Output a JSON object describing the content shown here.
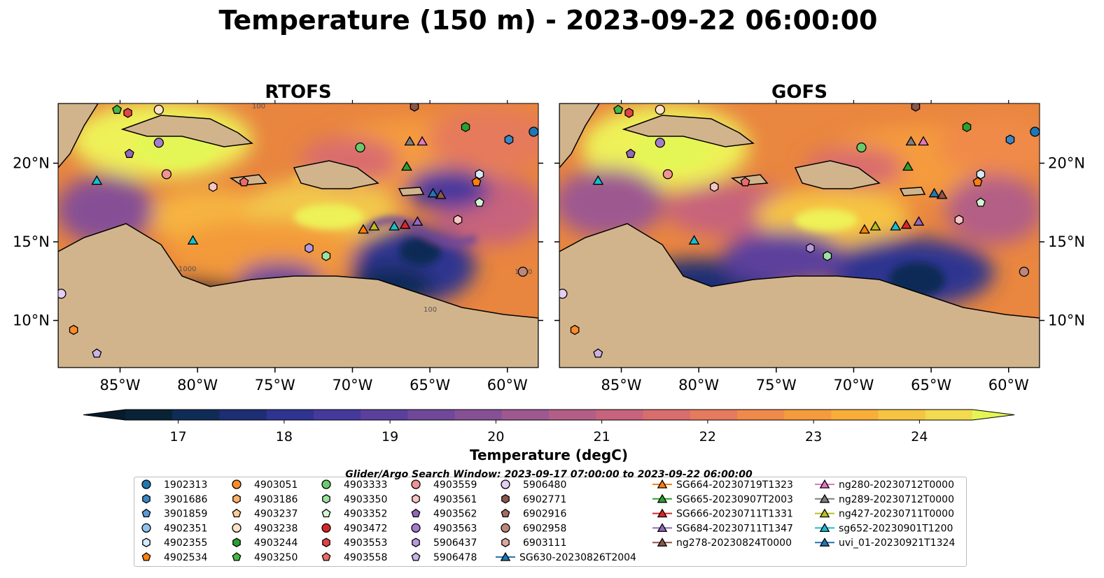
{
  "title": "Temperature (150 m) - 2023-09-22 06:00:00",
  "panels": [
    {
      "id": "rtofs",
      "title": "RTOFS"
    },
    {
      "id": "gofs",
      "title": "GOFS"
    }
  ],
  "map_extent": {
    "lon_min": -89,
    "lon_max": -58,
    "lat_min": 7,
    "lat_max": 23.8
  },
  "lon_ticks": [
    {
      "v": -85,
      "label": "85°W"
    },
    {
      "v": -80,
      "label": "80°W"
    },
    {
      "v": -75,
      "label": "75°W"
    },
    {
      "v": -70,
      "label": "70°W"
    },
    {
      "v": -65,
      "label": "65°W"
    },
    {
      "v": -60,
      "label": "60°W"
    }
  ],
  "lat_ticks": [
    {
      "v": 20,
      "label": "20°N"
    },
    {
      "v": 15,
      "label": "15°N"
    },
    {
      "v": 10,
      "label": "10°N"
    }
  ],
  "contour_labels": [
    "1000",
    "1000",
    "100",
    "100"
  ],
  "colorbar": {
    "label": "Temperature (degC)",
    "min": 16.5,
    "max": 24.5,
    "step": 0.5,
    "ticks": [
      {
        "v": 17,
        "label": "17"
      },
      {
        "v": 18,
        "label": "18"
      },
      {
        "v": 19,
        "label": "19"
      },
      {
        "v": 20,
        "label": "20"
      },
      {
        "v": 21,
        "label": "21"
      },
      {
        "v": 22,
        "label": "22"
      },
      {
        "v": 23,
        "label": "23"
      },
      {
        "v": 24,
        "label": "24"
      }
    ],
    "colors": [
      "#0a2236",
      "#0f2c57",
      "#1d2e75",
      "#2e348f",
      "#46399c",
      "#5b3f9c",
      "#704899",
      "#865095",
      "#9d5890",
      "#b35e86",
      "#c7637c",
      "#d96d6d",
      "#e67a5c",
      "#f08a4a",
      "#f59b3c",
      "#f8ae38",
      "#f6c443",
      "#f2db4f"
    ],
    "over_color": "#e4f655",
    "under_color": "#081b2a"
  },
  "search_window": "Glider/Argo Search Window: 2023-09-17 07:00:00 to 2023-09-22 06:00:00",
  "colors": {
    "land": "#d2b48c",
    "shelf": "#9ab9e0",
    "coast": "#000000"
  },
  "legend_columns": [
    [
      {
        "label": "1902313",
        "marker": "circle",
        "color": "#1f77b4"
      },
      {
        "label": "3901686",
        "marker": "hexagon",
        "color": "#3a87c8"
      },
      {
        "label": "3901859",
        "marker": "pentagon",
        "color": "#5a9ad6"
      },
      {
        "label": "4902351",
        "marker": "circle",
        "color": "#8fc2ee"
      },
      {
        "label": "4902355",
        "marker": "hexagon",
        "color": "#d6eafa"
      },
      {
        "label": "4902534",
        "marker": "pentagon",
        "color": "#ff7f0e"
      }
    ],
    [
      {
        "label": "4903051",
        "marker": "circle",
        "color": "#ff8c2a"
      },
      {
        "label": "4903186",
        "marker": "hexagon",
        "color": "#ffb266"
      },
      {
        "label": "4903237",
        "marker": "pentagon",
        "color": "#ffcc99"
      },
      {
        "label": "4903238",
        "marker": "circle",
        "color": "#ffe3c7"
      },
      {
        "label": "4903244",
        "marker": "hexagon",
        "color": "#2ca02c"
      },
      {
        "label": "4903250",
        "marker": "pentagon",
        "color": "#45b845"
      }
    ],
    [
      {
        "label": "4903333",
        "marker": "circle",
        "color": "#6cc96c"
      },
      {
        "label": "4903350",
        "marker": "hexagon",
        "color": "#9ee09e"
      },
      {
        "label": "4903352",
        "marker": "pentagon",
        "color": "#d3f5d3"
      },
      {
        "label": "4903472",
        "marker": "circle",
        "color": "#d62728"
      },
      {
        "label": "4903553",
        "marker": "hexagon",
        "color": "#e04545"
      },
      {
        "label": "4903558",
        "marker": "pentagon",
        "color": "#ec6a6a"
      }
    ],
    [
      {
        "label": "4903559",
        "marker": "circle",
        "color": "#f29393"
      },
      {
        "label": "4903561",
        "marker": "hexagon",
        "color": "#fac4c4"
      },
      {
        "label": "4903562",
        "marker": "pentagon",
        "color": "#9467bd"
      },
      {
        "label": "4903563",
        "marker": "circle",
        "color": "#a47ccc"
      },
      {
        "label": "5906437",
        "marker": "hexagon",
        "color": "#b799dc"
      },
      {
        "label": "5906478",
        "marker": "pentagon",
        "color": "#cbb3e8"
      }
    ],
    [
      {
        "label": "5906480",
        "marker": "circle",
        "color": "#e2cff3"
      },
      {
        "label": "6902771",
        "marker": "hexagon",
        "color": "#8c564b"
      },
      {
        "label": "6902916",
        "marker": "pentagon",
        "color": "#a46d62"
      },
      {
        "label": "6902958",
        "marker": "circle",
        "color": "#bb877c"
      },
      {
        "label": "6903111",
        "marker": "hexagon",
        "color": "#d9a99c"
      },
      {
        "label": "SG630-20230826T2004",
        "marker": "triangle-line",
        "color": "#1f77b4"
      }
    ],
    [
      {
        "label": "SG664-20230719T1323",
        "marker": "triangle-line",
        "color": "#ff7f0e"
      },
      {
        "label": "SG665-20230907T2003",
        "marker": "triangle-line",
        "color": "#2ca02c"
      },
      {
        "label": "SG666-20230711T1331",
        "marker": "triangle-line",
        "color": "#d62728"
      },
      {
        "label": "SG684-20230711T1347",
        "marker": "triangle-line",
        "color": "#9467bd"
      },
      {
        "label": "ng278-20230824T0000",
        "marker": "triangle-line",
        "color": "#8c564b"
      }
    ],
    [
      {
        "label": "ng280-20230712T0000",
        "marker": "triangle-line",
        "color": "#e377c2"
      },
      {
        "label": "ng289-20230712T0000",
        "marker": "triangle-line",
        "color": "#7f7f7f"
      },
      {
        "label": "ng427-20230711T0000",
        "marker": "triangle-line",
        "color": "#bcbd22"
      },
      {
        "label": "sg652-20230901T1200",
        "marker": "triangle-line",
        "color": "#17becf"
      },
      {
        "label": "uvi_01-20230921T1324",
        "marker": "triangle-line",
        "color": "#1f77b4"
      }
    ]
  ],
  "points": [
    {
      "lon": -58.3,
      "lat": 22.0,
      "marker": "circle",
      "color": "#1f77b4"
    },
    {
      "lon": -59.9,
      "lat": 21.5,
      "marker": "hexagon",
      "color": "#3a87c8"
    },
    {
      "lon": -61.8,
      "lat": 19.3,
      "marker": "hexagon",
      "color": "#d6eafa"
    },
    {
      "lon": -62.7,
      "lat": 22.3,
      "marker": "hexagon",
      "color": "#2ca02c"
    },
    {
      "lon": -61.8,
      "lat": 17.5,
      "marker": "pentagon",
      "color": "#d3f5d3"
    },
    {
      "lon": -62.0,
      "lat": 18.8,
      "marker": "pentagon",
      "color": "#ff7f0e"
    },
    {
      "lon": -63.2,
      "lat": 16.4,
      "marker": "hexagon",
      "color": "#fac4c4"
    },
    {
      "lon": -59.0,
      "lat": 13.1,
      "marker": "circle",
      "color": "#bb877c"
    },
    {
      "lon": -66.0,
      "lat": 23.6,
      "marker": "hexagon",
      "color": "#8c564b"
    },
    {
      "lon": -69.5,
      "lat": 21.0,
      "marker": "circle",
      "color": "#6cc96c"
    },
    {
      "lon": -71.7,
      "lat": 14.1,
      "marker": "hexagon",
      "color": "#9ee09e"
    },
    {
      "lon": -72.8,
      "lat": 14.6,
      "marker": "hexagon",
      "color": "#b799dc"
    },
    {
      "lon": -77.0,
      "lat": 18.8,
      "marker": "pentagon",
      "color": "#ec6a6a"
    },
    {
      "lon": -79.0,
      "lat": 18.5,
      "marker": "hexagon",
      "color": "#fac4c4"
    },
    {
      "lon": -82.0,
      "lat": 19.3,
      "marker": "circle",
      "color": "#f29393"
    },
    {
      "lon": -82.5,
      "lat": 21.3,
      "marker": "circle",
      "color": "#a47ccc"
    },
    {
      "lon": -84.4,
      "lat": 20.6,
      "marker": "pentagon",
      "color": "#9467bd"
    },
    {
      "lon": -82.5,
      "lat": 23.4,
      "marker": "circle",
      "color": "#ffe3c7"
    },
    {
      "lon": -84.5,
      "lat": 23.2,
      "marker": "hexagon",
      "color": "#e04545"
    },
    {
      "lon": -85.2,
      "lat": 23.4,
      "marker": "pentagon",
      "color": "#45b845"
    },
    {
      "lon": -88.8,
      "lat": 11.7,
      "marker": "circle",
      "color": "#e2cff3"
    },
    {
      "lon": -88.0,
      "lat": 9.4,
      "marker": "hexagon",
      "color": "#ff8c2a"
    },
    {
      "lon": -86.5,
      "lat": 7.9,
      "marker": "pentagon",
      "color": "#cbb3e8"
    },
    {
      "lon": -80.3,
      "lat": 15.1,
      "marker": "triangle",
      "color": "#17becf"
    },
    {
      "lon": -86.5,
      "lat": 18.9,
      "marker": "triangle",
      "color": "#17becf"
    },
    {
      "lon": -65.5,
      "lat": 21.4,
      "marker": "triangle",
      "color": "#e377c2"
    },
    {
      "lon": -66.3,
      "lat": 21.4,
      "marker": "triangle",
      "color": "#7f7f7f"
    },
    {
      "lon": -66.5,
      "lat": 19.8,
      "marker": "triangle",
      "color": "#2ca02c"
    },
    {
      "lon": -64.3,
      "lat": 18.0,
      "marker": "triangle",
      "color": "#8c564b"
    },
    {
      "lon": -64.8,
      "lat": 18.1,
      "marker": "triangle",
      "color": "#1f77b4"
    },
    {
      "lon": -69.3,
      "lat": 15.8,
      "marker": "triangle",
      "color": "#ff7f0e"
    },
    {
      "lon": -68.6,
      "lat": 16.0,
      "marker": "triangle",
      "color": "#bcbd22"
    },
    {
      "lon": -67.3,
      "lat": 16.0,
      "marker": "triangle",
      "color": "#17becf"
    },
    {
      "lon": -66.6,
      "lat": 16.1,
      "marker": "triangle",
      "color": "#d62728"
    },
    {
      "lon": -65.8,
      "lat": 16.3,
      "marker": "triangle",
      "color": "#9467bd"
    }
  ]
}
